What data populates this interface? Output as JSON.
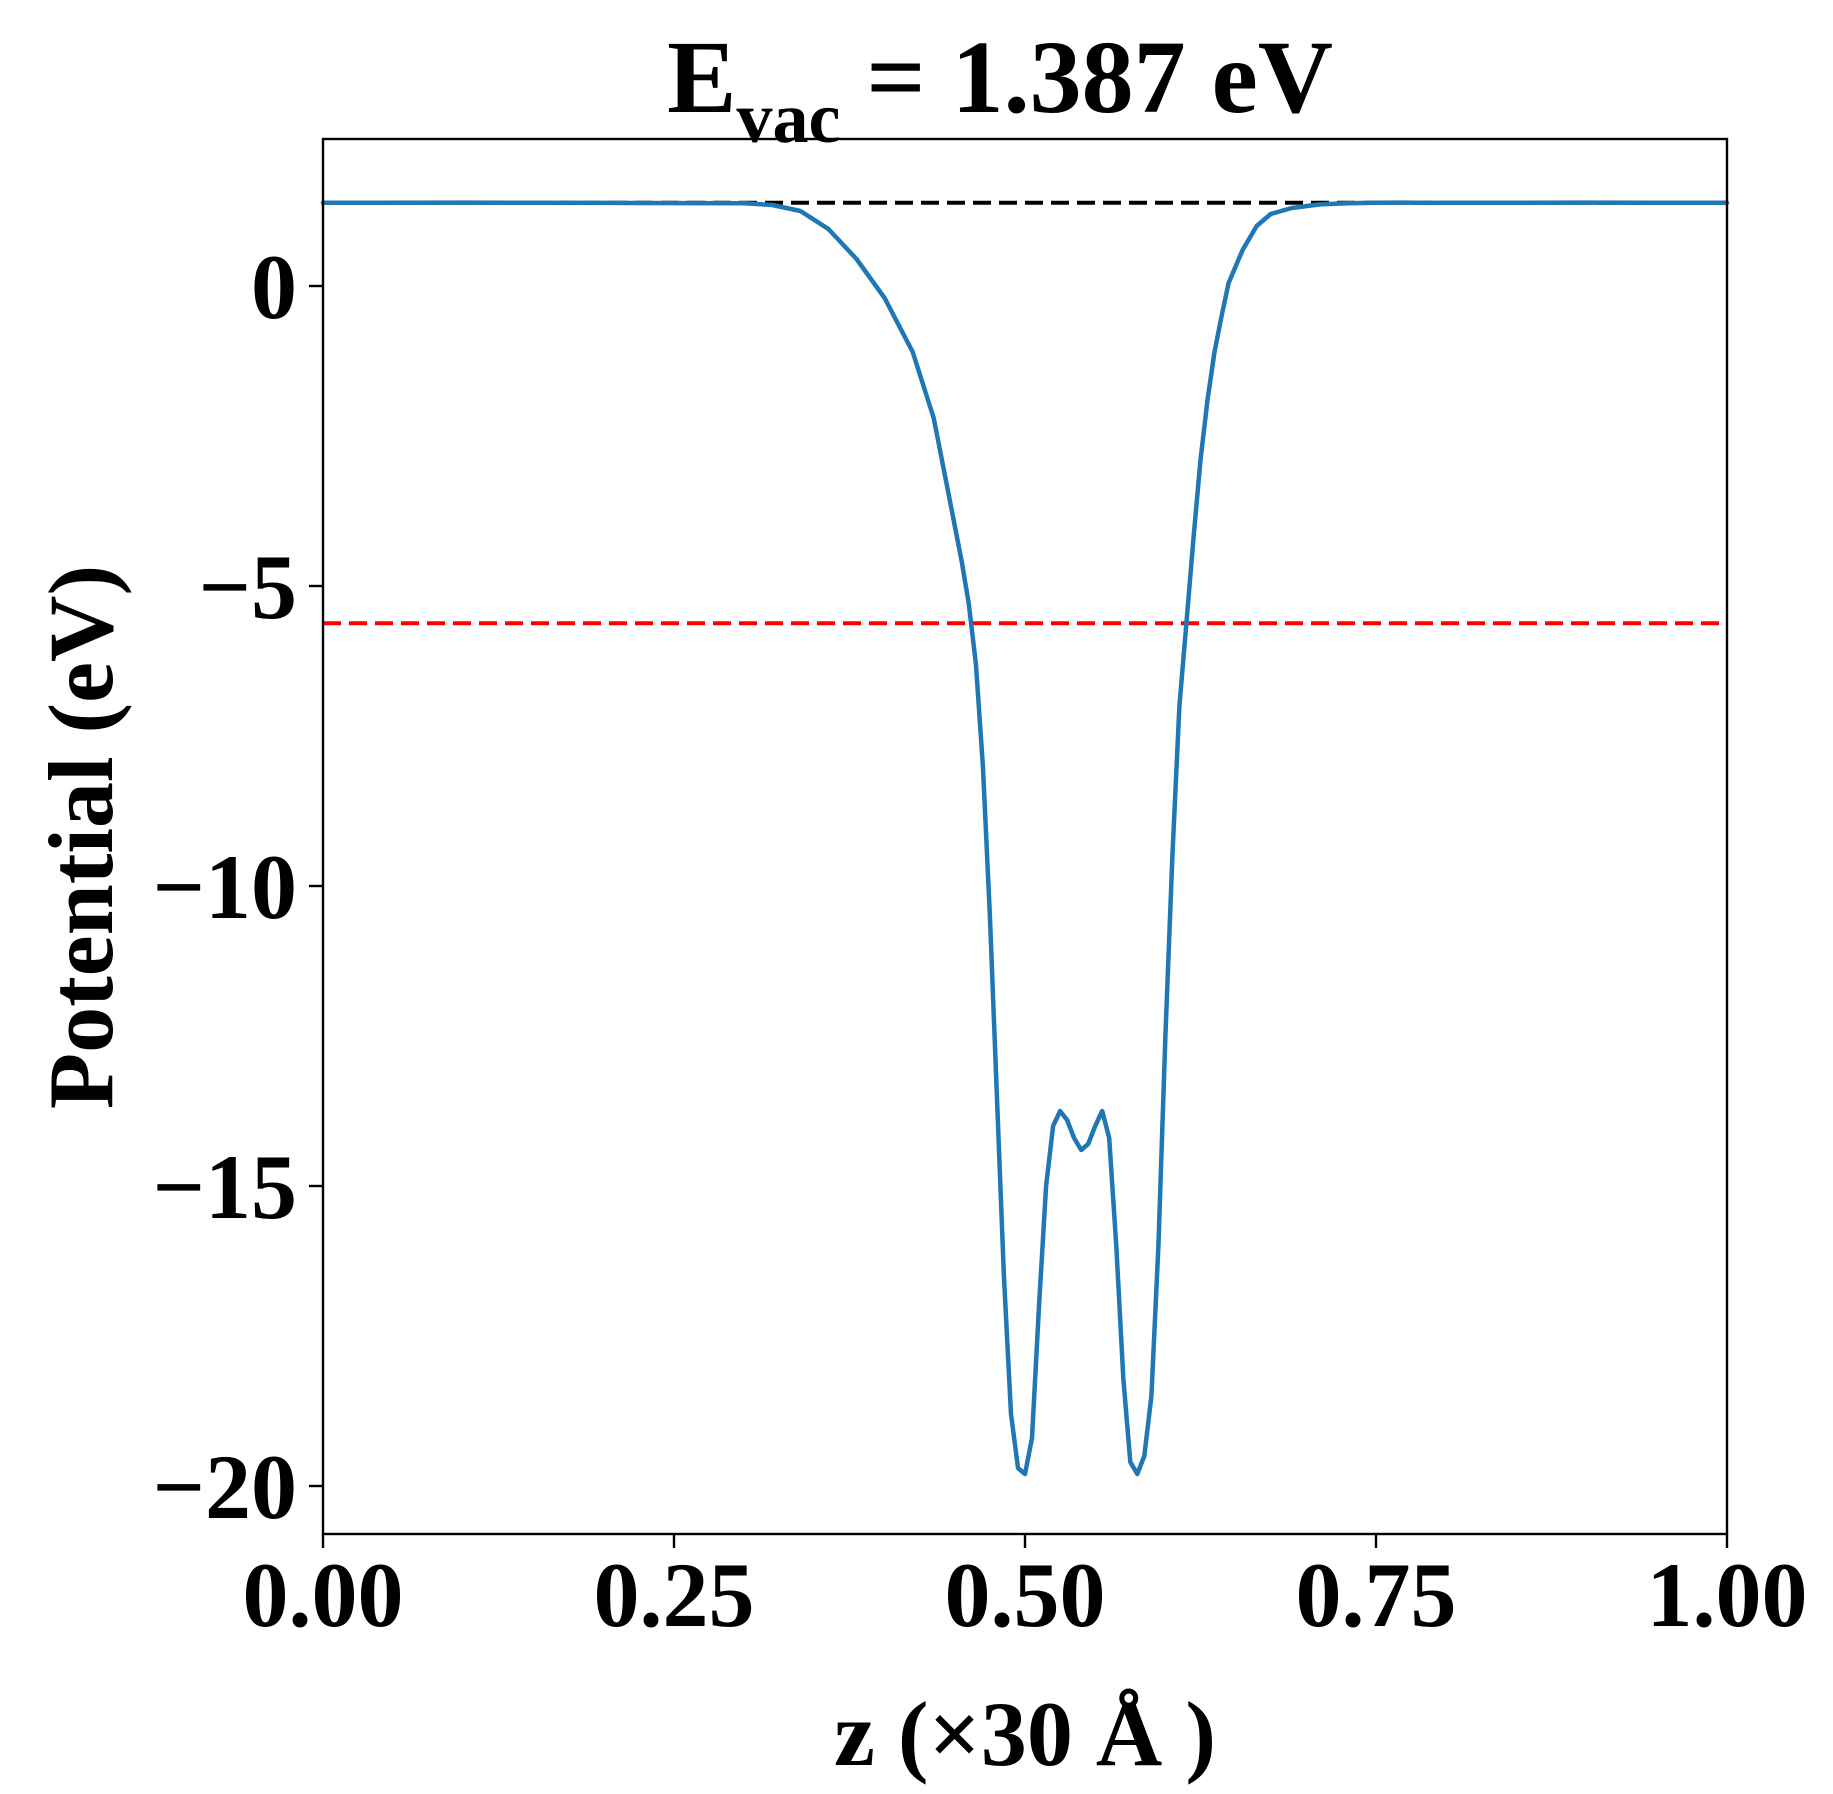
{
  "chart_data": {
    "type": "line",
    "title": {
      "main": "E",
      "subscript": "vac",
      "rest": " = 1.387 eV"
    },
    "xlabel": "z (×30 Å )",
    "ylabel": "Potential (eV)",
    "xlim": [
      0.0,
      1.0
    ],
    "ylim": [
      -20.8,
      2.45
    ],
    "xticks": [
      0.0,
      0.25,
      0.5,
      0.75,
      1.0
    ],
    "xtick_labels": [
      "0.00",
      "0.25",
      "0.50",
      "0.75",
      "1.00"
    ],
    "yticks": [
      0,
      -5,
      -10,
      -15,
      -20
    ],
    "ytick_labels": [
      "0",
      "−5",
      "−10",
      "−15",
      "−20"
    ],
    "grid": false,
    "reference_lines": [
      {
        "y": 1.387,
        "color": "#000000",
        "style": "dashed"
      },
      {
        "y": -5.62,
        "color": "#ff0000",
        "style": "dashed"
      }
    ],
    "series": [
      {
        "color": "#1f77b4",
        "x": [
          0.0,
          0.1,
          0.2,
          0.3,
          0.32,
          0.34,
          0.36,
          0.38,
          0.4,
          0.42,
          0.435,
          0.445,
          0.455,
          0.46,
          0.465,
          0.47,
          0.475,
          0.48,
          0.485,
          0.49,
          0.495,
          0.5,
          0.505,
          0.51,
          0.515,
          0.52,
          0.525,
          0.53,
          0.535,
          0.54,
          0.545,
          0.55,
          0.555,
          0.56,
          0.565,
          0.57,
          0.575,
          0.58,
          0.585,
          0.59,
          0.595,
          0.6,
          0.605,
          0.61,
          0.615,
          0.62,
          0.625,
          0.63,
          0.635,
          0.64,
          0.645,
          0.655,
          0.665,
          0.675,
          0.69,
          0.71,
          0.73,
          0.75,
          0.77,
          0.79,
          0.8,
          0.9,
          1.0
        ],
        "y": [
          1.387,
          1.39,
          1.385,
          1.38,
          1.35,
          1.25,
          0.95,
          0.45,
          -0.2,
          -1.1,
          -2.2,
          -3.4,
          -4.6,
          -5.3,
          -6.3,
          -8.0,
          -10.5,
          -13.5,
          -16.5,
          -18.8,
          -19.7,
          -19.8,
          -19.2,
          -17.0,
          -15.0,
          -14.0,
          -13.75,
          -13.9,
          -14.2,
          -14.4,
          -14.3,
          -14.0,
          -13.75,
          -14.2,
          -16.0,
          -18.2,
          -19.6,
          -19.8,
          -19.5,
          -18.5,
          -16.0,
          -12.5,
          -9.5,
          -7.0,
          -5.6,
          -4.2,
          -2.9,
          -1.9,
          -1.1,
          -0.5,
          0.05,
          0.6,
          1.0,
          1.2,
          1.3,
          1.36,
          1.38,
          1.387,
          1.39,
          1.385,
          1.387,
          1.39,
          1.387
        ]
      }
    ]
  }
}
